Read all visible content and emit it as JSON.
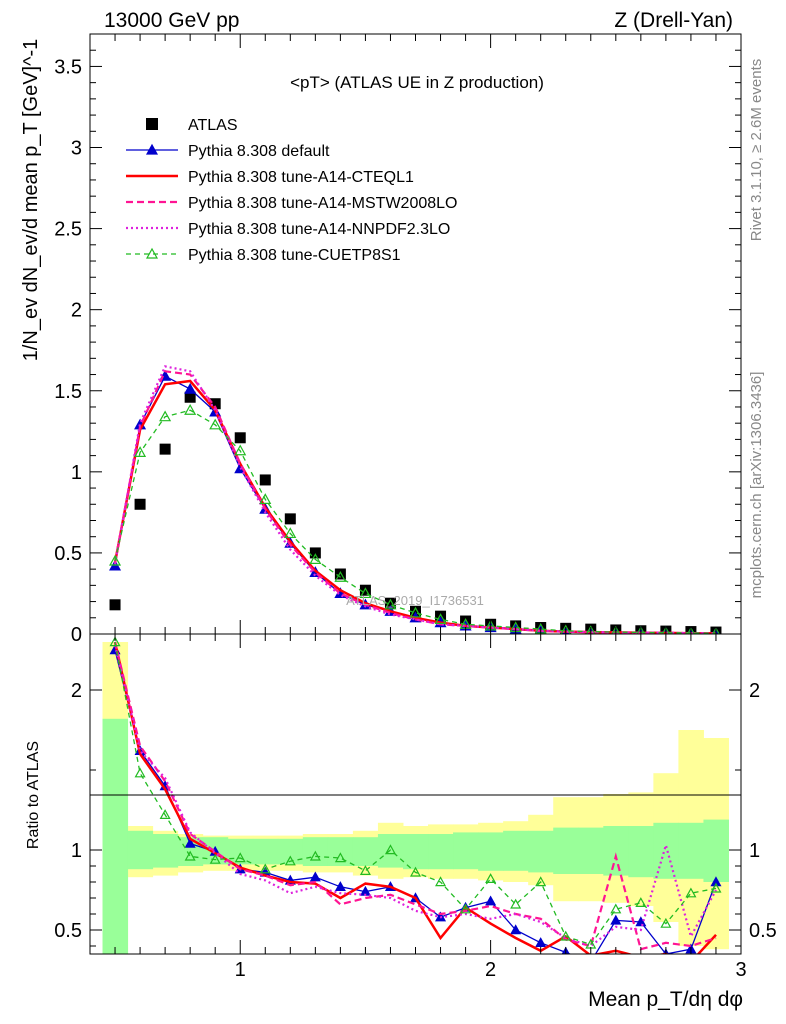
{
  "header": {
    "left": "13000 GeV pp",
    "right": "Z (Drell-Yan)"
  },
  "side_labels": {
    "rivet": "Rivet 3.1.10, ≥ 2.6M events",
    "mcplots": "mcplots.cern.ch [arXiv:1306.3436]"
  },
  "watermark": "ATLAS_2019_I1736531",
  "chart_data": [
    {
      "type": "line",
      "panel": "main",
      "title": "<pT> (ATLAS UE in Z production)",
      "ylabel": "1/N_ev dN_ev/d mean p_T [GeV]^-1",
      "xlim": [
        0.4,
        3.0
      ],
      "ylim": [
        0,
        3.7
      ],
      "yticks": [
        "0",
        "0.5",
        "1",
        "1.5",
        "2",
        "2.5",
        "3",
        "3.5"
      ],
      "ytick_values": [
        0,
        0.5,
        1,
        1.5,
        2,
        2.5,
        3,
        3.5
      ],
      "legend_position": "top-left",
      "x": [
        0.5,
        0.6,
        0.7,
        0.8,
        0.9,
        1.0,
        1.1,
        1.2,
        1.3,
        1.4,
        1.5,
        1.6,
        1.7,
        1.8,
        1.9,
        2.0,
        2.1,
        2.2,
        2.3,
        2.4,
        2.5,
        2.6,
        2.7,
        2.8,
        2.9
      ],
      "series": [
        {
          "name": "ATLAS",
          "style": "data",
          "color": "#000000",
          "values": [
            0.18,
            0.8,
            1.14,
            1.46,
            1.42,
            1.21,
            0.95,
            0.71,
            0.5,
            0.37,
            0.27,
            0.19,
            0.14,
            0.11,
            0.08,
            0.06,
            0.05,
            0.04,
            0.035,
            0.03,
            0.025,
            0.02,
            0.018,
            0.015,
            0.012
          ]
        },
        {
          "name": "Pythia 8.308 default",
          "style": "solid",
          "marker": "triangle",
          "color": "#0000cc",
          "values": [
            0.42,
            1.29,
            1.59,
            1.51,
            1.37,
            1.02,
            0.77,
            0.56,
            0.38,
            0.25,
            0.18,
            0.14,
            0.1,
            0.07,
            0.05,
            0.04,
            0.03,
            0.02,
            0.015,
            0.012,
            0.01,
            0.01,
            0.008,
            0.006,
            0.005
          ]
        },
        {
          "name": "Pythia 8.308 tune-A14-CTEQL1",
          "style": "solid-thick",
          "color": "#ff0000",
          "values": [
            0.44,
            1.26,
            1.54,
            1.56,
            1.38,
            1.05,
            0.78,
            0.57,
            0.39,
            0.27,
            0.19,
            0.14,
            0.1,
            0.07,
            0.05,
            0.04,
            0.03,
            0.02,
            0.015,
            0.012,
            0.01,
            0.008,
            0.007,
            0.005,
            0.004
          ]
        },
        {
          "name": "Pythia 8.308 tune-A14-MSTW2008LO",
          "style": "dashed",
          "color": "#ff1493",
          "values": [
            0.44,
            1.28,
            1.62,
            1.6,
            1.4,
            1.05,
            0.77,
            0.55,
            0.38,
            0.25,
            0.18,
            0.13,
            0.09,
            0.06,
            0.05,
            0.04,
            0.03,
            0.02,
            0.015,
            0.012,
            0.01,
            0.008,
            0.007,
            0.005,
            0.004
          ]
        },
        {
          "name": "Pythia 8.308 tune-A14-NNPDF2.3LO",
          "style": "dotted",
          "color": "#dd22dd",
          "values": [
            0.43,
            1.3,
            1.65,
            1.62,
            1.38,
            1.03,
            0.75,
            0.52,
            0.36,
            0.24,
            0.17,
            0.12,
            0.09,
            0.06,
            0.05,
            0.04,
            0.03,
            0.02,
            0.015,
            0.012,
            0.01,
            0.008,
            0.008,
            0.005,
            0.004
          ]
        },
        {
          "name": "Pythia 8.308 tune-CUETP8S1",
          "style": "dashed-thin",
          "marker": "open-triangle",
          "color": "#22bb22",
          "values": [
            0.45,
            1.12,
            1.34,
            1.38,
            1.29,
            1.13,
            0.83,
            0.62,
            0.46,
            0.35,
            0.25,
            0.18,
            0.13,
            0.09,
            0.06,
            0.05,
            0.04,
            0.03,
            0.02,
            0.015,
            0.012,
            0.01,
            0.008,
            0.006,
            0.005
          ]
        }
      ]
    },
    {
      "type": "line",
      "panel": "ratio",
      "xlabel": "Mean p_T/dη dφ",
      "ylabel": "Ratio to ATLAS",
      "xlim": [
        0.4,
        3.0
      ],
      "ylim": [
        0.35,
        2.35
      ],
      "xticks": [
        "1",
        "2",
        "3"
      ],
      "xtick_values": [
        1,
        2,
        3
      ],
      "yticks": [
        "0.5",
        "1",
        "2"
      ],
      "ytick_values": [
        0.5,
        1,
        2
      ],
      "x": [
        0.5,
        0.6,
        0.7,
        0.8,
        0.9,
        1.0,
        1.1,
        1.2,
        1.3,
        1.4,
        1.5,
        1.6,
        1.7,
        1.8,
        1.9,
        2.0,
        2.1,
        2.2,
        2.3,
        2.4,
        2.5,
        2.6,
        2.7,
        2.8,
        2.9
      ],
      "band_green": [
        [
          0.1,
          1.82
        ],
        [
          0.88,
          1.12
        ],
        [
          0.89,
          1.1
        ],
        [
          0.9,
          1.08
        ],
        [
          0.91,
          1.08
        ],
        [
          0.91,
          1.07
        ],
        [
          0.91,
          1.07
        ],
        [
          0.91,
          1.07
        ],
        [
          0.9,
          1.08
        ],
        [
          0.9,
          1.08
        ],
        [
          0.9,
          1.08
        ],
        [
          0.89,
          1.1
        ],
        [
          0.88,
          1.1
        ],
        [
          0.88,
          1.1
        ],
        [
          0.88,
          1.11
        ],
        [
          0.87,
          1.11
        ],
        [
          0.87,
          1.12
        ],
        [
          0.86,
          1.12
        ],
        [
          0.85,
          1.14
        ],
        [
          0.85,
          1.14
        ],
        [
          0.84,
          1.15
        ],
        [
          0.83,
          1.15
        ],
        [
          0.82,
          1.17
        ],
        [
          0.82,
          1.17
        ],
        [
          0.8,
          1.19
        ]
      ],
      "band_yellow": [
        [
          0.1,
          2.3
        ],
        [
          0.83,
          1.15
        ],
        [
          0.84,
          1.12
        ],
        [
          0.86,
          1.1
        ],
        [
          0.87,
          1.09
        ],
        [
          0.87,
          1.09
        ],
        [
          0.87,
          1.09
        ],
        [
          0.87,
          1.09
        ],
        [
          0.86,
          1.1
        ],
        [
          0.86,
          1.1
        ],
        [
          0.84,
          1.12
        ],
        [
          0.82,
          1.17
        ],
        [
          0.83,
          1.15
        ],
        [
          0.82,
          1.16
        ],
        [
          0.82,
          1.16
        ],
        [
          0.81,
          1.17
        ],
        [
          0.8,
          1.18
        ],
        [
          0.78,
          1.22
        ],
        [
          0.68,
          1.33
        ],
        [
          0.68,
          1.33
        ],
        [
          0.67,
          1.35
        ],
        [
          0.65,
          1.36
        ],
        [
          0.55,
          1.48
        ],
        [
          0.4,
          1.75
        ],
        [
          0.38,
          1.7
        ]
      ],
      "series": [
        {
          "name": "Pythia 8.308 default",
          "color": "#0000cc",
          "values": [
            2.25,
            1.62,
            1.4,
            1.04,
            0.99,
            0.88,
            0.86,
            0.81,
            0.83,
            0.77,
            0.74,
            0.77,
            0.7,
            0.58,
            0.64,
            0.68,
            0.5,
            0.42,
            0.36,
            0.3,
            0.56,
            0.55,
            0.35,
            0.38,
            0.8
          ]
        },
        {
          "name": "Pythia 8.308 tune-A14-CTEQL1",
          "color": "#ff0000",
          "values": [
            2.3,
            1.6,
            1.38,
            1.07,
            0.98,
            0.89,
            0.84,
            0.8,
            0.79,
            0.7,
            0.79,
            0.77,
            0.7,
            0.45,
            0.64,
            0.54,
            0.45,
            0.37,
            0.46,
            0.34,
            0.37,
            0.33,
            0.35,
            0.3,
            0.47
          ]
        },
        {
          "name": "Pythia 8.308 tune-A14-MSTW2008LO",
          "color": "#ff1493",
          "values": [
            2.3,
            1.65,
            1.43,
            1.1,
            0.99,
            0.88,
            0.84,
            0.78,
            0.8,
            0.66,
            0.7,
            0.72,
            0.66,
            0.6,
            0.62,
            0.65,
            0.6,
            0.57,
            0.44,
            0.4,
            0.96,
            0.38,
            0.42,
            0.4,
            0.45
          ]
        },
        {
          "name": "Pythia 8.308 tune-A14-NNPDF2.3LO",
          "color": "#dd22dd",
          "values": [
            2.28,
            1.62,
            1.45,
            1.11,
            0.98,
            0.85,
            0.81,
            0.73,
            0.77,
            0.73,
            0.72,
            0.7,
            0.62,
            0.58,
            0.6,
            0.57,
            0.6,
            0.55,
            0.45,
            0.4,
            0.52,
            0.5,
            1.03,
            0.46,
            0.75
          ]
        },
        {
          "name": "Pythia 8.308 tune-CUETP8S1",
          "color": "#22bb22",
          "values": [
            2.3,
            1.48,
            1.22,
            0.96,
            0.94,
            0.95,
            0.88,
            0.93,
            0.96,
            0.95,
            0.87,
            1.0,
            0.86,
            0.8,
            0.63,
            0.82,
            0.66,
            0.8,
            0.46,
            0.41,
            0.63,
            0.67,
            0.54,
            0.73,
            0.76
          ]
        }
      ]
    }
  ]
}
